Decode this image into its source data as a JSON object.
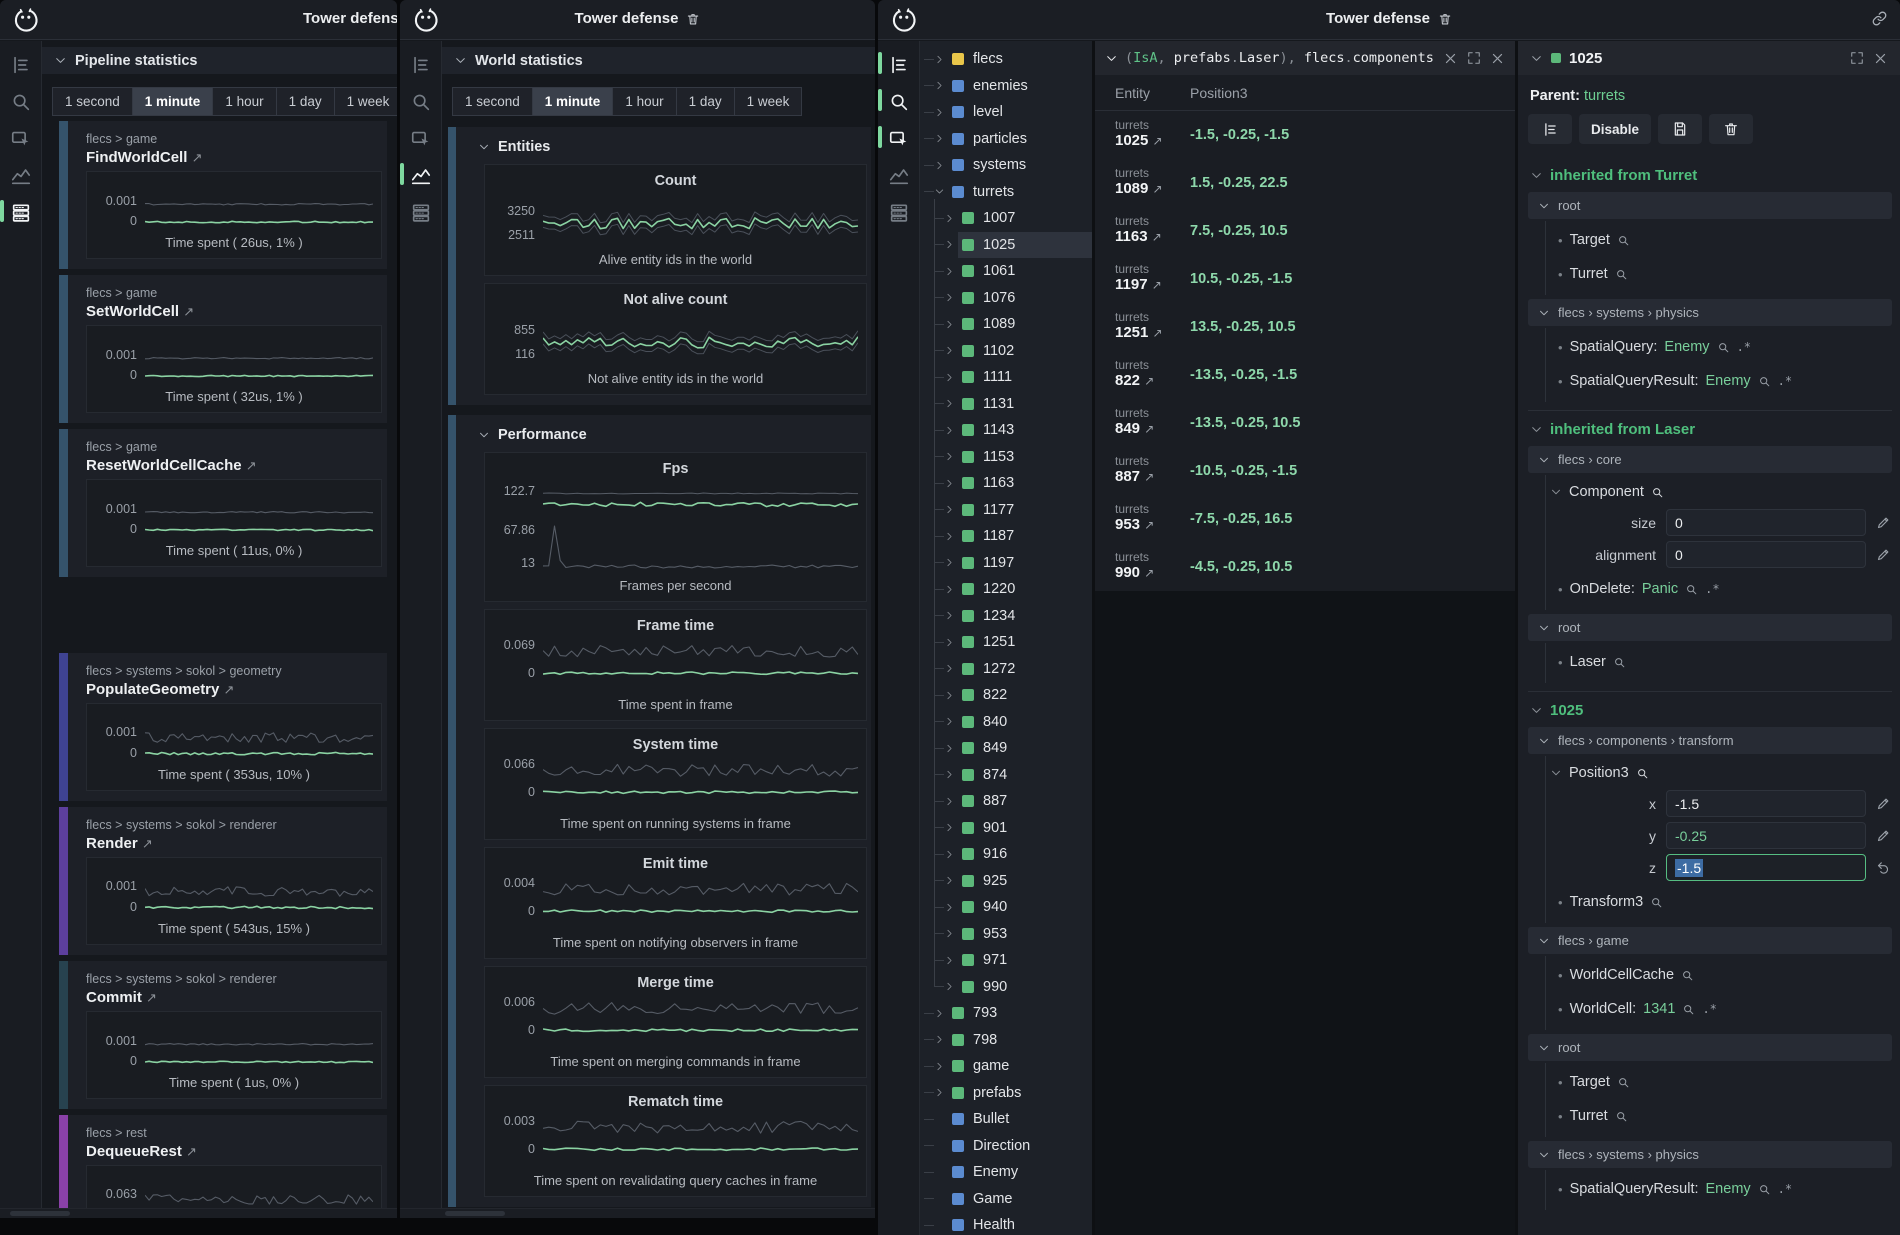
{
  "app": {
    "window_title": "Tower defense"
  },
  "palette": {
    "accent_green": "#57bd7f",
    "pill_green": "#7ed89f",
    "value_green": "#8ed8ab",
    "square_yellow": "#e9c64a",
    "square_blue": "#5b8bd0",
    "square_green": "#5cb87a"
  },
  "sidebar": {
    "icons": [
      "tree",
      "search",
      "select",
      "chart",
      "stats"
    ]
  },
  "tabs": {
    "items": [
      "1 second",
      "1 minute",
      "1 hour",
      "1 day",
      "1 week"
    ],
    "active": "1 minute"
  },
  "window1": {
    "panel_title": "Pipeline statistics",
    "active_icon": "stats",
    "charts": [
      {
        "breadcrumb": "flecs > game",
        "name": "FindWorldCell",
        "y_labels": [
          "0.001",
          "0"
        ],
        "caption": "Time spent ( 26us, 1% )",
        "bar_color": "#35536b",
        "style": "flat"
      },
      {
        "breadcrumb": "flecs > game",
        "name": "SetWorldCell",
        "y_labels": [
          "0.001",
          "0"
        ],
        "caption": "Time spent ( 32us, 1% )",
        "bar_color": "#35536b",
        "style": "flat"
      },
      {
        "breadcrumb": "flecs > game",
        "name": "ResetWorldCellCache",
        "y_labels": [
          "0.001",
          "0"
        ],
        "caption": "Time spent ( 11us, 0% )",
        "bar_color": "#35536b",
        "style": "flat"
      },
      {
        "breadcrumb": "flecs > systems > sokol > geometry",
        "name": "PopulateGeometry",
        "y_labels": [
          "0.001",
          "0"
        ],
        "caption": "Time spent ( 353us, 10% )",
        "bar_color": "#3f4392",
        "style": "noisy",
        "gap_before": true
      },
      {
        "breadcrumb": "flecs > systems > sokol > renderer",
        "name": "Render",
        "y_labels": [
          "0.001",
          "0"
        ],
        "caption": "Time spent ( 543us, 15% )",
        "bar_color": "#5d3f9d",
        "style": "noisy"
      },
      {
        "breadcrumb": "flecs > systems > sokol > renderer",
        "name": "Commit",
        "y_labels": [
          "0.001",
          "0"
        ],
        "caption": "Time spent ( 1us, 0% )",
        "bar_color": "#27424f",
        "style": "flat"
      },
      {
        "breadcrumb": "flecs > rest",
        "name": "DequeueRest",
        "y_labels": [
          "0.063",
          "0"
        ],
        "caption": "Time spent",
        "bar_color": "#8a41a8",
        "style": "noisy"
      }
    ]
  },
  "window2": {
    "panel_title": "World statistics",
    "active_icon": "chart",
    "sections": [
      {
        "title": "Entities",
        "charts": [
          {
            "title": "Count",
            "y_labels": [
              "3250",
              "2511"
            ],
            "caption": "Alive entity ids in the world",
            "style": "band"
          },
          {
            "title": "Not alive count",
            "y_labels": [
              "855",
              "116"
            ],
            "caption": "Not alive entity ids in the world",
            "style": "band"
          }
        ]
      },
      {
        "title": "Performance",
        "charts": [
          {
            "title": "Fps",
            "y_labels": [
              "122.7",
              "67.86",
              "13"
            ],
            "caption": "Frames per second",
            "style": "fps",
            "tall": true
          },
          {
            "title": "Frame time",
            "y_labels": [
              "0.069",
              "0"
            ],
            "caption": "Time spent in frame",
            "style": "noisy"
          },
          {
            "title": "System time",
            "y_labels": [
              "0.066",
              "0"
            ],
            "caption": "Time spent on running systems in frame",
            "style": "noisy"
          },
          {
            "title": "Emit time",
            "y_labels": [
              "0.004",
              "0"
            ],
            "caption": "Time spent on notifying observers in frame",
            "style": "noisy"
          },
          {
            "title": "Merge time",
            "y_labels": [
              "0.006",
              "0"
            ],
            "caption": "Time spent on merging commands in frame",
            "style": "noisy"
          },
          {
            "title": "Rematch time",
            "y_labels": [
              "0.003",
              "0"
            ],
            "caption": "Time spent on revalidating query caches in frame",
            "style": "noisy"
          }
        ]
      }
    ]
  },
  "window3": {
    "active_icons": [
      "tree",
      "search",
      "select"
    ],
    "tree": [
      {
        "label": "flecs",
        "sq": "yellow",
        "st": "collapsed",
        "d": 0
      },
      {
        "label": "enemies",
        "sq": "blue",
        "st": "collapsed",
        "d": 0
      },
      {
        "label": "level",
        "sq": "blue",
        "st": "collapsed",
        "d": 0
      },
      {
        "label": "particles",
        "sq": "blue",
        "st": "collapsed",
        "d": 0
      },
      {
        "label": "systems",
        "sq": "blue",
        "st": "collapsed",
        "d": 0
      },
      {
        "label": "turrets",
        "sq": "blue",
        "st": "expanded",
        "d": 0
      },
      {
        "label": "1007",
        "sq": "green",
        "st": "collapsed",
        "d": 1
      },
      {
        "label": "1025",
        "sq": "green",
        "st": "collapsed",
        "d": 1,
        "selected": true
      },
      {
        "label": "1061",
        "sq": "green",
        "st": "collapsed",
        "d": 1
      },
      {
        "label": "1076",
        "sq": "green",
        "st": "collapsed",
        "d": 1
      },
      {
        "label": "1089",
        "sq": "green",
        "st": "collapsed",
        "d": 1
      },
      {
        "label": "1102",
        "sq": "green",
        "st": "collapsed",
        "d": 1
      },
      {
        "label": "1111",
        "sq": "green",
        "st": "collapsed",
        "d": 1
      },
      {
        "label": "1131",
        "sq": "green",
        "st": "collapsed",
        "d": 1
      },
      {
        "label": "1143",
        "sq": "green",
        "st": "collapsed",
        "d": 1
      },
      {
        "label": "1153",
        "sq": "green",
        "st": "collapsed",
        "d": 1
      },
      {
        "label": "1163",
        "sq": "green",
        "st": "collapsed",
        "d": 1
      },
      {
        "label": "1177",
        "sq": "green",
        "st": "collapsed",
        "d": 1
      },
      {
        "label": "1187",
        "sq": "green",
        "st": "collapsed",
        "d": 1
      },
      {
        "label": "1197",
        "sq": "green",
        "st": "collapsed",
        "d": 1
      },
      {
        "label": "1220",
        "sq": "green",
        "st": "collapsed",
        "d": 1
      },
      {
        "label": "1234",
        "sq": "green",
        "st": "collapsed",
        "d": 1
      },
      {
        "label": "1251",
        "sq": "green",
        "st": "collapsed",
        "d": 1
      },
      {
        "label": "1272",
        "sq": "green",
        "st": "collapsed",
        "d": 1
      },
      {
        "label": "822",
        "sq": "green",
        "st": "collapsed",
        "d": 1
      },
      {
        "label": "840",
        "sq": "green",
        "st": "collapsed",
        "d": 1
      },
      {
        "label": "849",
        "sq": "green",
        "st": "collapsed",
        "d": 1
      },
      {
        "label": "874",
        "sq": "green",
        "st": "collapsed",
        "d": 1
      },
      {
        "label": "887",
        "sq": "green",
        "st": "collapsed",
        "d": 1
      },
      {
        "label": "901",
        "sq": "green",
        "st": "collapsed",
        "d": 1
      },
      {
        "label": "916",
        "sq": "green",
        "st": "collapsed",
        "d": 1
      },
      {
        "label": "925",
        "sq": "green",
        "st": "collapsed",
        "d": 1
      },
      {
        "label": "940",
        "sq": "green",
        "st": "collapsed",
        "d": 1
      },
      {
        "label": "953",
        "sq": "green",
        "st": "collapsed",
        "d": 1
      },
      {
        "label": "971",
        "sq": "green",
        "st": "collapsed",
        "d": 1
      },
      {
        "label": "990",
        "sq": "green",
        "st": "collapsed",
        "d": 1
      },
      {
        "label": "793",
        "sq": "green",
        "st": "collapsed",
        "d": 0
      },
      {
        "label": "798",
        "sq": "green",
        "st": "collapsed",
        "d": 0
      },
      {
        "label": "game",
        "sq": "green",
        "st": "collapsed",
        "d": 0
      },
      {
        "label": "prefabs",
        "sq": "green",
        "st": "collapsed",
        "d": 0
      },
      {
        "label": "Bullet",
        "sq": "blue",
        "st": "leaf",
        "d": 0
      },
      {
        "label": "Direction",
        "sq": "blue",
        "st": "leaf",
        "d": 0
      },
      {
        "label": "Enemy",
        "sq": "blue",
        "st": "leaf",
        "d": 0
      },
      {
        "label": "Game",
        "sq": "blue",
        "st": "leaf",
        "d": 0
      },
      {
        "label": "Health",
        "sq": "blue",
        "st": "leaf",
        "d": 0
      }
    ],
    "query": {
      "tokens": [
        {
          "text": "(",
          "c": "p"
        },
        {
          "text": "IsA",
          "c": "g"
        },
        {
          "text": ", ",
          "c": "p"
        },
        {
          "text": "prefabs",
          "c": "w"
        },
        {
          "text": ".",
          "c": "p"
        },
        {
          "text": "Laser",
          "c": "w"
        },
        {
          "text": "), ",
          "c": "p"
        },
        {
          "text": "flecs",
          "c": "w"
        },
        {
          "text": ".",
          "c": "p"
        },
        {
          "text": "components",
          "c": "w"
        }
      ],
      "columns": [
        "Entity",
        "Position3"
      ],
      "rows": [
        {
          "parent": "turrets",
          "id": "1025",
          "value": "-1.5, -0.25, -1.5"
        },
        {
          "parent": "turrets",
          "id": "1089",
          "value": "1.5, -0.25, 22.5"
        },
        {
          "parent": "turrets",
          "id": "1163",
          "value": "7.5, -0.25, 10.5"
        },
        {
          "parent": "turrets",
          "id": "1197",
          "value": "10.5, -0.25, -1.5"
        },
        {
          "parent": "turrets",
          "id": "1251",
          "value": "13.5, -0.25, 10.5"
        },
        {
          "parent": "turrets",
          "id": "822",
          "value": "-13.5, -0.25, -1.5"
        },
        {
          "parent": "turrets",
          "id": "849",
          "value": "-13.5, -0.25, 10.5"
        },
        {
          "parent": "turrets",
          "id": "887",
          "value": "-10.5, -0.25, -1.5"
        },
        {
          "parent": "turrets",
          "id": "953",
          "value": "-7.5, -0.25, 16.5"
        },
        {
          "parent": "turrets",
          "id": "990",
          "value": "-4.5, -0.25, 10.5"
        }
      ]
    },
    "inspector": {
      "id": "1025",
      "parent_label": "Parent:",
      "parent_value": "turrets",
      "buttons": {
        "disable": "Disable"
      },
      "sections": [
        {
          "type": "h",
          "label": "inherited from Turret"
        },
        {
          "type": "group",
          "path": "root",
          "items": [
            {
              "kind": "tag",
              "label": "Target"
            },
            {
              "kind": "tag",
              "label": "Turret"
            }
          ]
        },
        {
          "type": "group",
          "path": "flecs › systems › physics",
          "items": [
            {
              "kind": "pair",
              "label": "SpatialQuery:",
              "value": "Enemy"
            },
            {
              "kind": "pair",
              "label": "SpatialQueryResult:",
              "value": "Enemy"
            }
          ]
        },
        {
          "type": "h",
          "label": "inherited from Laser"
        },
        {
          "type": "group",
          "path": "flecs › core",
          "items": [
            {
              "kind": "component",
              "label": "Component",
              "fields": [
                {
                  "name": "size",
                  "value": "0"
                },
                {
                  "name": "alignment",
                  "value": "0"
                }
              ]
            },
            {
              "kind": "pair",
              "label": "OnDelete:",
              "value": "Panic"
            }
          ]
        },
        {
          "type": "group",
          "path": "root",
          "items": [
            {
              "kind": "tag",
              "label": "Laser"
            }
          ]
        },
        {
          "type": "h",
          "label": "1025"
        },
        {
          "type": "group",
          "path": "flecs › components › transform",
          "items": [
            {
              "kind": "component",
              "label": "Position3",
              "fields": [
                {
                  "name": "x",
                  "value": "-1.5"
                },
                {
                  "name": "y",
                  "value": "-0.25",
                  "green": true
                },
                {
                  "name": "z",
                  "value": "-1.5",
                  "editing": true
                }
              ]
            },
            {
              "kind": "tag",
              "label": "Transform3"
            }
          ]
        },
        {
          "type": "group",
          "path": "flecs › game",
          "items": [
            {
              "kind": "tag",
              "label": "WorldCellCache"
            },
            {
              "kind": "pair",
              "label": "WorldCell:",
              "value": "1341"
            }
          ]
        },
        {
          "type": "group",
          "path": "root",
          "items": [
            {
              "kind": "tag",
              "label": "Target"
            },
            {
              "kind": "tag",
              "label": "Turret"
            }
          ]
        },
        {
          "type": "group",
          "path": "flecs › systems › physics",
          "items": [
            {
              "kind": "pair",
              "label": "SpatialQueryResult:",
              "value": "Enemy"
            }
          ]
        }
      ]
    }
  }
}
